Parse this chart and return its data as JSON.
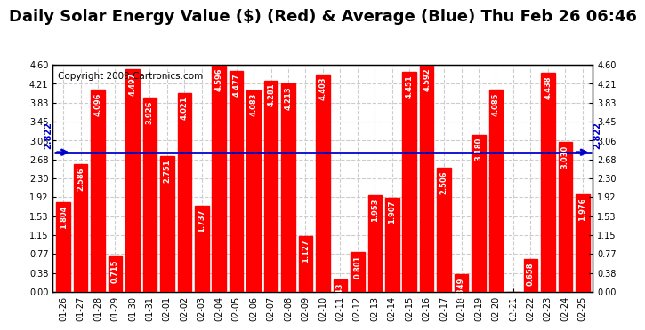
{
  "title": "Daily Solar Energy Value ($) (Red) & Average (Blue) Thu Feb 26 06:46",
  "copyright": "Copyright 2009 Cartronics.com",
  "average": 2.822,
  "categories": [
    "01-26",
    "01-27",
    "01-28",
    "01-29",
    "01-30",
    "01-31",
    "02-01",
    "02-02",
    "02-03",
    "02-04",
    "02-05",
    "02-06",
    "02-07",
    "02-08",
    "02-09",
    "02-10",
    "02-11",
    "02-12",
    "02-13",
    "02-14",
    "02-15",
    "02-16",
    "02-17",
    "02-18",
    "02-19",
    "02-20",
    "02-21",
    "02-22",
    "02-23",
    "02-24",
    "02-25"
  ],
  "values": [
    1.804,
    2.586,
    4.096,
    0.715,
    4.497,
    3.926,
    2.751,
    4.021,
    1.737,
    4.596,
    4.477,
    4.083,
    4.281,
    4.213,
    1.127,
    4.403,
    0.243,
    0.801,
    1.953,
    1.907,
    4.451,
    4.592,
    2.506,
    0.349,
    3.18,
    4.085,
    0.0,
    0.658,
    4.438,
    3.03,
    1.976
  ],
  "bar_color": "#ff0000",
  "avg_line_color": "#0000cc",
  "bg_color": "#ffffff",
  "plot_bg_color": "#ffffff",
  "grid_color": "#cccccc",
  "ylim": [
    0.0,
    4.6
  ],
  "yticks": [
    0.0,
    0.38,
    0.77,
    1.15,
    1.53,
    1.92,
    2.3,
    2.68,
    3.06,
    3.45,
    3.83,
    4.21,
    4.6
  ],
  "title_fontsize": 13,
  "copyright_fontsize": 7.5,
  "tick_fontsize": 7,
  "value_fontsize": 6,
  "avg_label": "2.822"
}
